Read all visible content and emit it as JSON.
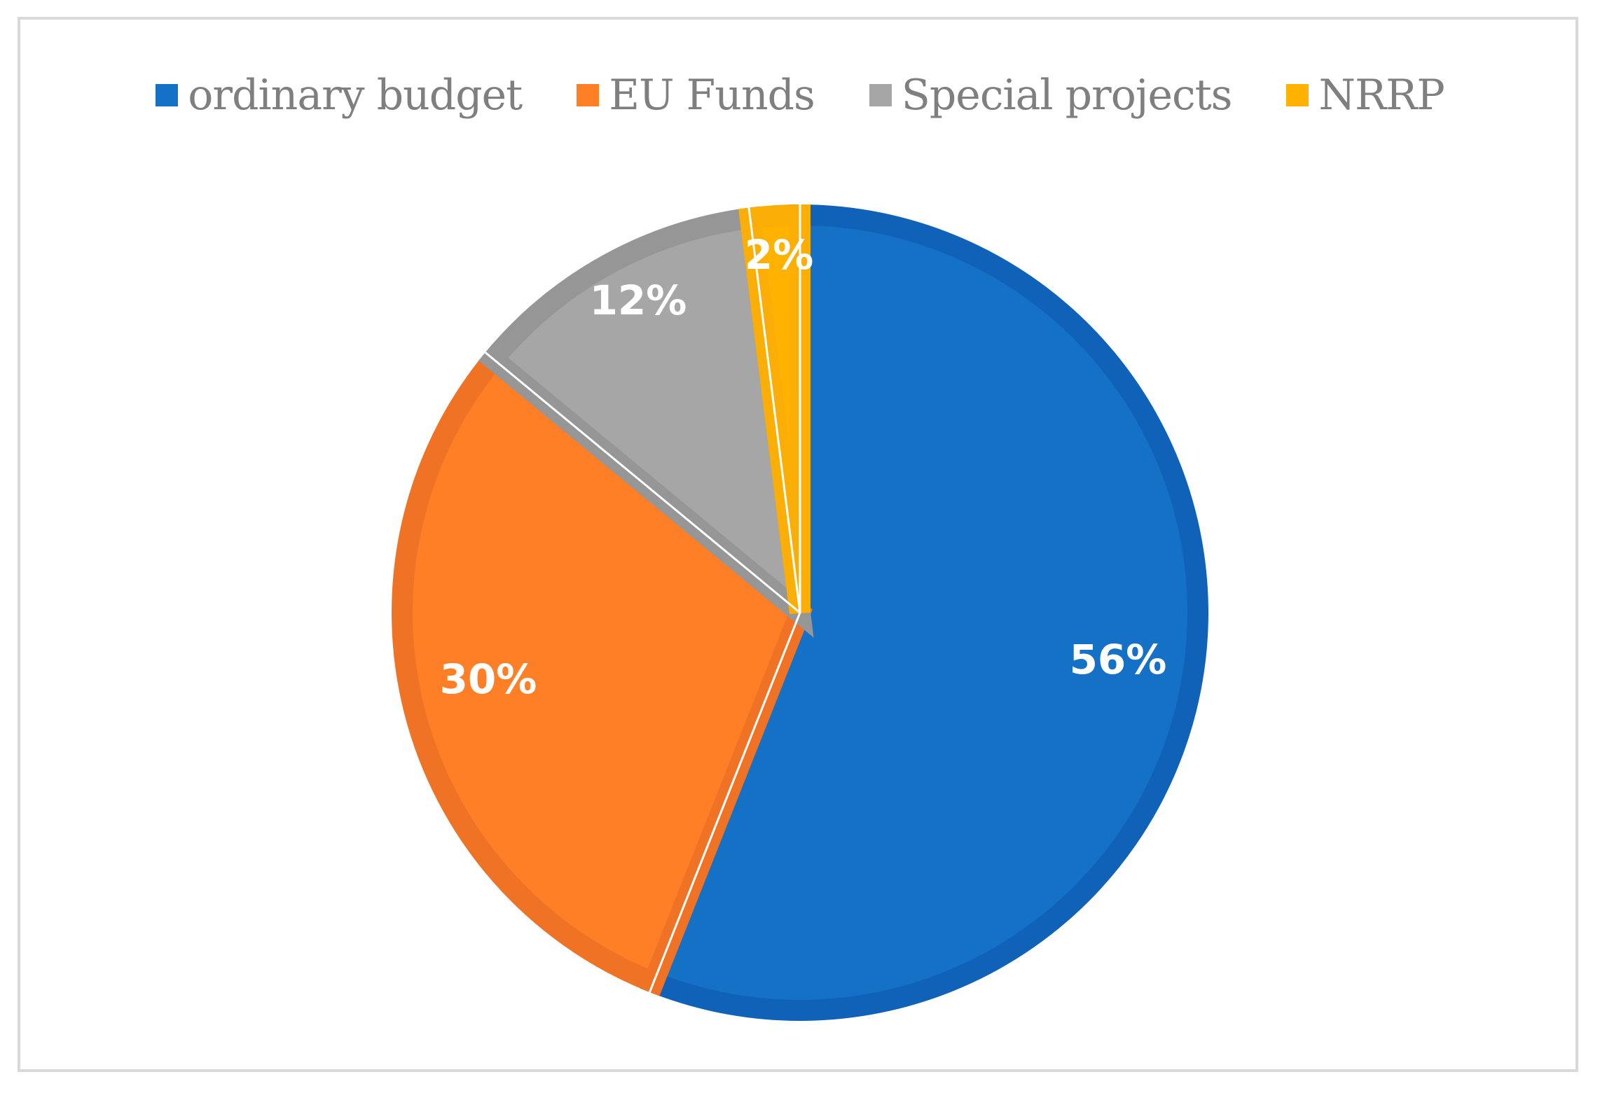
{
  "chart_data": {
    "type": "pie",
    "categories": [
      "ordinary budget",
      "EU Funds",
      "Special projects",
      "NRRP"
    ],
    "values": [
      56,
      30,
      12,
      2
    ],
    "data_labels": [
      "56%",
      "30%",
      "12%",
      "2%"
    ],
    "colors": [
      "#1471c6",
      "#fe7f26",
      "#a6a6a6",
      "#ffb200"
    ],
    "border_colors": [
      "#0f62b8",
      "#f07325",
      "#969696",
      "#fbae05"
    ],
    "legend_position": "top",
    "start_angle": "12 o'clock",
    "direction": "clockwise"
  }
}
